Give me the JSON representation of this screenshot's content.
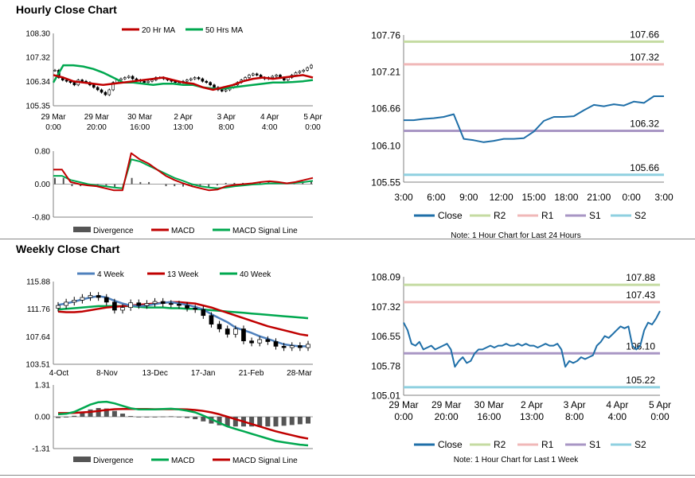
{
  "hourly": {
    "title": "Hourly Close Chart",
    "price": {
      "yticks": [
        "108.30",
        "107.32",
        "106.34",
        "105.35"
      ],
      "ylim": [
        105.35,
        108.3
      ],
      "xticks": [
        [
          "29 Mar",
          "0:00"
        ],
        [
          "29 Mar",
          "20:00"
        ],
        [
          "30 Mar",
          "16:00"
        ],
        [
          "2 Apr",
          "13:00"
        ],
        [
          "3 Apr",
          "8:00"
        ],
        [
          "4 Apr",
          "4:00"
        ],
        [
          "5 Apr",
          "0:00"
        ]
      ],
      "legend": [
        "20 Hr MA",
        "50 Hrs MA"
      ],
      "ma20": [
        106.6,
        106.5,
        106.35,
        106.3,
        106.25,
        106.2,
        106.25,
        106.3,
        106.35,
        106.4,
        106.45,
        106.5,
        106.4,
        106.3,
        106.25,
        106.1,
        106.0,
        106.1,
        106.2,
        106.35,
        106.45,
        106.5,
        106.45,
        106.5,
        106.55,
        106.6,
        106.5
      ],
      "ma50": [
        106.3,
        107.0,
        107.0,
        106.95,
        106.85,
        106.7,
        106.5,
        106.3,
        106.3,
        106.25,
        106.2,
        106.25,
        106.25,
        106.2,
        106.2,
        106.1,
        106.05,
        106.05,
        106.1,
        106.15,
        106.2,
        106.25,
        106.3,
        106.3,
        106.32,
        106.35,
        106.4
      ],
      "close": [
        106.8,
        106.5,
        106.4,
        106.35,
        106.3,
        106.2,
        106.4,
        106.35,
        106.3,
        106.2,
        106.1,
        106.0,
        105.9,
        105.8,
        106.0,
        106.3,
        106.4,
        106.45,
        106.5,
        106.55,
        106.45,
        106.4,
        106.35,
        106.3,
        106.35,
        106.4,
        106.5,
        106.5,
        106.45,
        106.4,
        106.35,
        106.3,
        106.3,
        106.35,
        106.4,
        106.45,
        106.5,
        106.45,
        106.35,
        106.3,
        106.2,
        106.1,
        106.0,
        105.95,
        106.0,
        106.1,
        106.2,
        106.3,
        106.4,
        106.5,
        106.6,
        106.65,
        106.6,
        106.5,
        106.45,
        106.5,
        106.55,
        106.6,
        106.5,
        106.4,
        106.5,
        106.6,
        106.7,
        106.75,
        106.8,
        106.9,
        107.0
      ]
    },
    "macd_panel": {
      "yticks": [
        "0.80",
        "0.00",
        "-0.80"
      ],
      "ylim": [
        -0.8,
        0.8
      ],
      "legend": [
        "Divergence",
        "MACD",
        "MACD Signal Line"
      ],
      "macd": [
        0.35,
        0.35,
        0.05,
        0.0,
        -0.03,
        -0.05,
        -0.1,
        -0.15,
        -0.15,
        0.75,
        0.6,
        0.5,
        0.35,
        0.2,
        0.1,
        0.02,
        -0.05,
        -0.1,
        -0.15,
        -0.13,
        -0.05,
        -0.02,
        0.0,
        0.02,
        0.05,
        0.07,
        0.05,
        0.02,
        0.05,
        0.1,
        0.15
      ],
      "signal": [
        0.2,
        0.2,
        0.1,
        0.05,
        0.0,
        -0.03,
        -0.05,
        -0.08,
        -0.1,
        0.6,
        0.55,
        0.45,
        0.35,
        0.25,
        0.15,
        0.08,
        0.0,
        -0.05,
        -0.08,
        -0.1,
        -0.08,
        -0.05,
        -0.03,
        -0.01,
        0.0,
        0.02,
        0.02,
        0.02,
        0.03,
        0.05,
        0.08
      ]
    },
    "zoom": {
      "yticks": [
        "107.76",
        "107.21",
        "106.66",
        "106.10",
        "105.55"
      ],
      "ylim": [
        105.55,
        107.76
      ],
      "xticks": [
        "3:00",
        "6:00",
        "9:00",
        "12:00",
        "15:00",
        "18:00",
        "21:00",
        "0:00",
        "3:00"
      ],
      "levels": [
        {
          "name": "R2",
          "value": 107.66,
          "label": "107.66",
          "color": "#c5dba2"
        },
        {
          "name": "R1",
          "value": 107.32,
          "label": "107.32",
          "color": "#f0b8b8"
        },
        {
          "name": "S1",
          "value": 106.32,
          "label": "106.32",
          "color": "#a896c4"
        },
        {
          "name": "S2",
          "value": 105.66,
          "label": "105.66",
          "color": "#8fd0e0"
        }
      ],
      "close": [
        106.48,
        106.48,
        106.5,
        106.51,
        106.53,
        106.57,
        106.2,
        106.18,
        106.15,
        106.17,
        106.2,
        106.2,
        106.21,
        106.31,
        106.47,
        106.53,
        106.53,
        106.54,
        106.63,
        106.71,
        106.69,
        106.72,
        106.7,
        106.76,
        106.74,
        106.84,
        106.84
      ],
      "legend": [
        "Close",
        "R2",
        "R1",
        "S1",
        "S2"
      ],
      "note": "Note: 1 Hour Chart for Last 24 Hours"
    }
  },
  "weekly": {
    "title": "Weekly Close Chart",
    "price": {
      "yticks": [
        "115.88",
        "111.76",
        "107.64",
        "103.51"
      ],
      "ylim": [
        103.51,
        115.88
      ],
      "xticks": [
        "4-Oct",
        "8-Nov",
        "13-Dec",
        "17-Jan",
        "21-Feb",
        "28-Mar"
      ],
      "legend": [
        "4 Week",
        "13 Week",
        "40 Week"
      ],
      "candles": [
        {
          "o": 111.9,
          "c": 112.3
        },
        {
          "o": 112.3,
          "c": 112.8
        },
        {
          "o": 112.8,
          "c": 113.1
        },
        {
          "o": 113.1,
          "c": 113.5
        },
        {
          "o": 113.5,
          "c": 113.8
        },
        {
          "o": 113.8,
          "c": 113.5
        },
        {
          "o": 113.5,
          "c": 112.8
        },
        {
          "o": 112.8,
          "c": 111.6
        },
        {
          "o": 111.6,
          "c": 112.0
        },
        {
          "o": 112.0,
          "c": 112.7
        },
        {
          "o": 112.7,
          "c": 112.3
        },
        {
          "o": 112.3,
          "c": 112.6
        },
        {
          "o": 112.6,
          "c": 112.9
        },
        {
          "o": 112.9,
          "c": 112.6
        },
        {
          "o": 112.6,
          "c": 112.5
        },
        {
          "o": 112.5,
          "c": 112.3
        },
        {
          "o": 112.3,
          "c": 111.9
        },
        {
          "o": 111.9,
          "c": 111.7
        },
        {
          "o": 111.7,
          "c": 110.8
        },
        {
          "o": 110.8,
          "c": 109.5
        },
        {
          "o": 109.5,
          "c": 108.8
        },
        {
          "o": 108.8,
          "c": 108.0
        },
        {
          "o": 108.0,
          "c": 108.8
        },
        {
          "o": 108.8,
          "c": 107.0
        },
        {
          "o": 107.0,
          "c": 106.7
        },
        {
          "o": 106.7,
          "c": 107.2
        },
        {
          "o": 107.2,
          "c": 106.9
        },
        {
          "o": 106.9,
          "c": 106.2
        },
        {
          "o": 106.2,
          "c": 106.0
        },
        {
          "o": 106.0,
          "c": 106.3
        },
        {
          "o": 106.3,
          "c": 106.0
        },
        {
          "o": 106.0,
          "c": 106.5
        }
      ],
      "ma4": [
        112.4,
        112.6,
        112.9,
        113.2,
        113.5,
        113.7,
        113.5,
        113.0,
        112.6,
        112.3,
        112.2,
        112.3,
        112.5,
        112.7,
        112.8,
        112.6,
        112.4,
        112.1,
        111.7,
        111.0,
        110.4,
        109.8,
        109.0,
        108.6,
        108.2,
        107.7,
        107.3,
        106.9,
        106.5,
        106.3,
        106.2,
        106.2
      ],
      "ma13": [
        111.4,
        111.3,
        111.3,
        111.4,
        111.6,
        111.8,
        112.0,
        112.1,
        112.2,
        112.3,
        112.4,
        112.5,
        112.6,
        112.7,
        112.8,
        112.8,
        112.7,
        112.6,
        112.3,
        112.0,
        111.6,
        111.2,
        110.8,
        110.4,
        110.0,
        109.6,
        109.2,
        108.9,
        108.6,
        108.3,
        108.0,
        107.8
      ],
      "ma40": [
        111.7,
        111.8,
        111.9,
        112.0,
        112.1,
        112.2,
        112.2,
        112.2,
        112.2,
        112.2,
        112.1,
        112.0,
        112.0,
        112.0,
        111.9,
        111.9,
        111.8,
        111.8,
        111.7,
        111.6,
        111.5,
        111.4,
        111.3,
        111.2,
        111.1,
        111.0,
        110.9,
        110.8,
        110.7,
        110.6,
        110.5,
        110.4
      ]
    },
    "macd_panel": {
      "yticks": [
        "1.31",
        "0.00",
        "-1.31"
      ],
      "ylim": [
        -1.31,
        1.31
      ],
      "legend": [
        "Divergence",
        "MACD",
        "MACD Signal Line"
      ],
      "macd": [
        0.1,
        0.12,
        0.2,
        0.35,
        0.5,
        0.6,
        0.62,
        0.55,
        0.45,
        0.35,
        0.3,
        0.3,
        0.3,
        0.32,
        0.33,
        0.3,
        0.25,
        0.18,
        0.05,
        -0.1,
        -0.25,
        -0.4,
        -0.5,
        -0.6,
        -0.7,
        -0.8,
        -0.9,
        -1.0,
        -1.05,
        -1.1,
        -1.15,
        -1.18
      ],
      "signal": [
        0.15,
        0.15,
        0.16,
        0.18,
        0.2,
        0.24,
        0.28,
        0.31,
        0.32,
        0.32,
        0.32,
        0.32,
        0.31,
        0.31,
        0.31,
        0.31,
        0.3,
        0.28,
        0.24,
        0.18,
        0.1,
        0.0,
        -0.1,
        -0.2,
        -0.3,
        -0.4,
        -0.5,
        -0.6,
        -0.68,
        -0.76,
        -0.84,
        -0.9
      ],
      "divergence": [
        -0.05,
        -0.03,
        0.04,
        0.17,
        0.3,
        0.36,
        0.34,
        0.24,
        0.13,
        0.03,
        -0.02,
        -0.02,
        -0.01,
        0.01,
        0.02,
        -0.01,
        -0.05,
        -0.1,
        -0.19,
        -0.28,
        -0.35,
        -0.4,
        -0.4,
        -0.4,
        -0.4,
        -0.4,
        -0.4,
        -0.4,
        -0.37,
        -0.34,
        -0.31,
        -0.28
      ]
    },
    "zoom": {
      "yticks": [
        "108.09",
        "107.32",
        "106.55",
        "105.78",
        "105.01"
      ],
      "ylim": [
        105.01,
        108.09
      ],
      "xticks": [
        [
          "29 Mar",
          "0:00"
        ],
        [
          "29 Mar",
          "20:00"
        ],
        [
          "30 Mar",
          "16:00"
        ],
        [
          "2 Apr",
          "13:00"
        ],
        [
          "3 Apr",
          "8:00"
        ],
        [
          "4 Apr",
          "4:00"
        ],
        [
          "5 Apr",
          "0:00"
        ]
      ],
      "levels": [
        {
          "name": "R2",
          "value": 107.88,
          "label": "107.88",
          "color": "#c5dba2"
        },
        {
          "name": "R1",
          "value": 107.43,
          "label": "107.43",
          "color": "#f0b8b8"
        },
        {
          "name": "S1",
          "value": 106.1,
          "label": "106.10",
          "color": "#a896c4"
        },
        {
          "name": "S2",
          "value": 105.22,
          "label": "105.22",
          "color": "#8fd0e0"
        }
      ],
      "close": [
        106.9,
        106.7,
        106.35,
        106.3,
        106.4,
        106.2,
        106.25,
        106.3,
        106.2,
        106.25,
        106.3,
        106.35,
        106.2,
        105.75,
        105.9,
        106.0,
        105.85,
        105.9,
        106.1,
        106.2,
        106.2,
        106.25,
        106.3,
        106.25,
        106.3,
        106.3,
        106.35,
        106.3,
        106.3,
        106.35,
        106.3,
        106.35,
        106.3,
        106.3,
        106.25,
        106.3,
        106.35,
        106.3,
        106.3,
        106.35,
        106.2,
        105.75,
        105.9,
        105.85,
        105.9,
        106.0,
        105.95,
        106.0,
        106.05,
        106.3,
        106.4,
        106.55,
        106.5,
        106.6,
        106.7,
        106.8,
        106.75,
        106.8,
        106.3,
        106.2,
        106.3,
        106.7,
        106.9,
        106.85,
        107.0,
        107.2
      ],
      "legend": [
        "Close",
        "R2",
        "R1",
        "S1",
        "S2"
      ],
      "note": "Note: 1 Hour Chart for Last 1 Week"
    }
  },
  "colors": {
    "red": "#c00000",
    "green": "#00a84f",
    "blue": "#4f81bd",
    "close": "#1f6fa8",
    "divergence": "#555555",
    "grid": "#d9d9d9",
    "axis": "#808080"
  }
}
